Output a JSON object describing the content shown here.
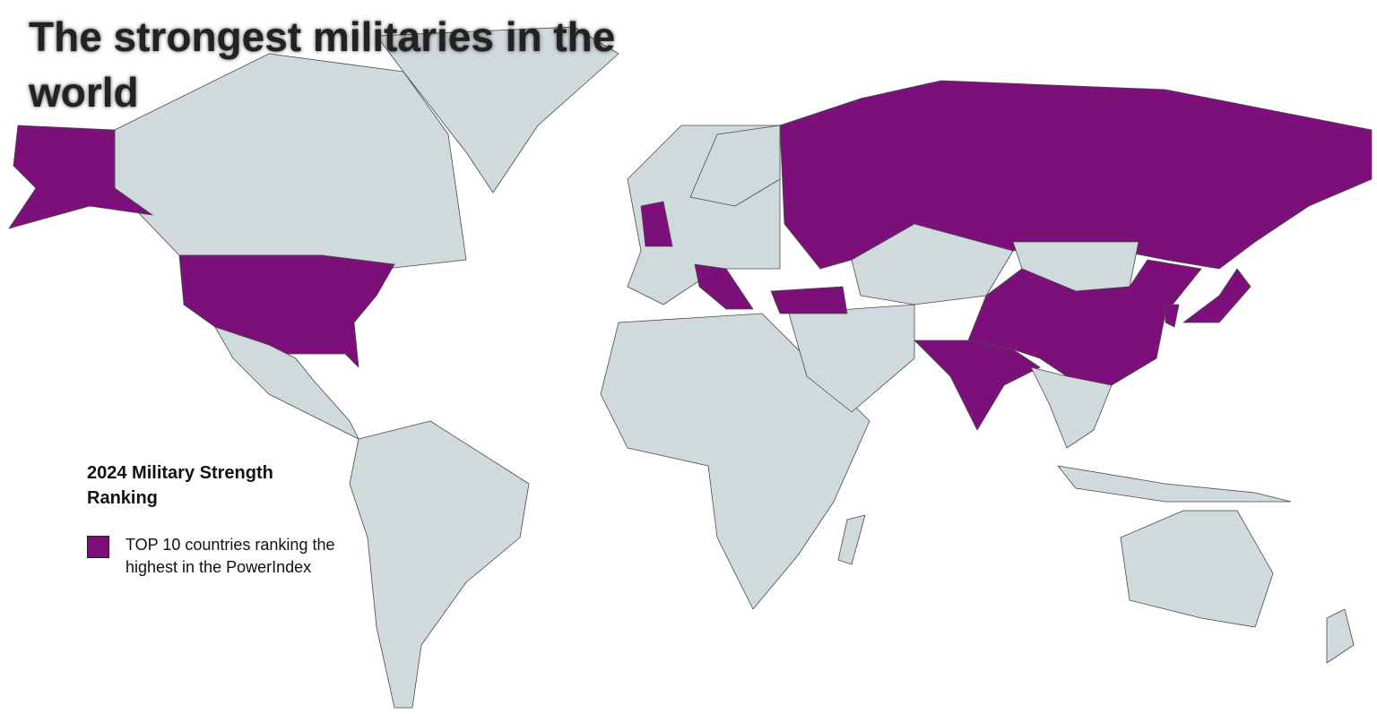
{
  "title": "The strongest militaries in the world",
  "legend": {
    "title": "2024 Military Strength Ranking",
    "items": [
      {
        "label": "TOP 10 countries ranking the highest in the PowerIndex",
        "color": "#7d0f7a"
      }
    ]
  }
}
